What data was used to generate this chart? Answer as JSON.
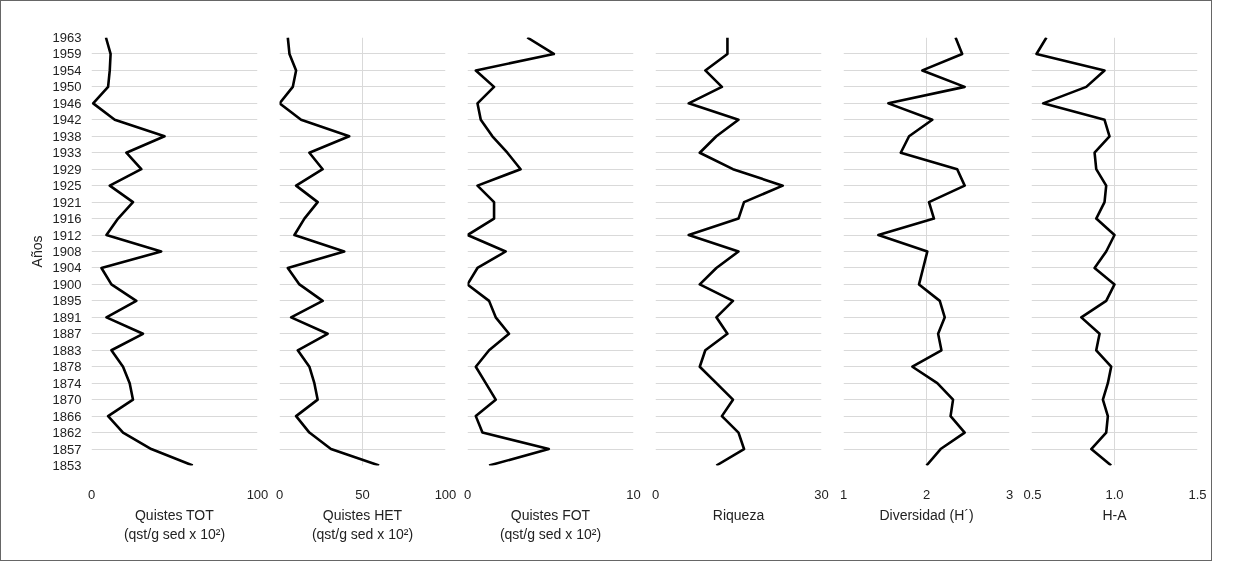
{
  "chart_data": [
    {
      "type": "line",
      "orientation": "horizontal",
      "ylabel": "Años",
      "xlabel": "Quistes TOT\n(qst/g sed x 10²)",
      "categories": [
        "1963",
        "1959",
        "1954",
        "1950",
        "1946",
        "1942",
        "1938",
        "1933",
        "1929",
        "1925",
        "1921",
        "1916",
        "1912",
        "1908",
        "1904",
        "1900",
        "1895",
        "1891",
        "1887",
        "1883",
        "1878",
        "1874",
        "1870",
        "1866",
        "1862",
        "1857",
        "1853"
      ],
      "series": [
        {
          "color": "#000000",
          "values": [
            8.7,
            11.5,
            11,
            10,
            1,
            14,
            44,
            21,
            30,
            11,
            25,
            16,
            9,
            42,
            6,
            12,
            27,
            9,
            31,
            12,
            19,
            23,
            25,
            10,
            19,
            36,
            61
          ]
        }
      ],
      "xlim": [
        0,
        100
      ],
      "xticks": [
        0,
        100
      ],
      "grid": true
    },
    {
      "type": "line",
      "orientation": "horizontal",
      "xlabel": "Quistes HET\n(qst/g sed x 10²)",
      "categories": [
        "1963",
        "1959",
        "1954",
        "1950",
        "1946",
        "1942",
        "1938",
        "1933",
        "1929",
        "1925",
        "1921",
        "1916",
        "1912",
        "1908",
        "1904",
        "1900",
        "1895",
        "1891",
        "1887",
        "1883",
        "1878",
        "1874",
        "1870",
        "1866",
        "1862",
        "1857",
        "1853"
      ],
      "series": [
        {
          "color": "#000000",
          "values": [
            5,
            6,
            10,
            8,
            0,
            13,
            42,
            18,
            26,
            10,
            23,
            15,
            9,
            39,
            5,
            12,
            26,
            7,
            29,
            11,
            18,
            21,
            23,
            10,
            18,
            31,
            60
          ]
        }
      ],
      "xlim": [
        0,
        100
      ],
      "xticks": [
        0,
        50,
        100
      ],
      "grid": true,
      "tick_labels": "x"
    },
    {
      "type": "line",
      "orientation": "horizontal",
      "xlabel": "Quistes FOT\n(qst/g sed x 10²)",
      "categories": [
        "1963",
        "1959",
        "1954",
        "1950",
        "1946",
        "1942",
        "1938",
        "1933",
        "1929",
        "1925",
        "1921",
        "1916",
        "1912",
        "1908",
        "1904",
        "1900",
        "1895",
        "1891",
        "1887",
        "1883",
        "1878",
        "1874",
        "1870",
        "1866",
        "1862",
        "1857",
        "1853"
      ],
      "series": [
        {
          "color": "#000000",
          "values": [
            3.6,
            5.2,
            0.5,
            1.6,
            0.6,
            0.8,
            1.5,
            2.4,
            3.2,
            0.6,
            1.6,
            1.6,
            0,
            2.3,
            0.6,
            0,
            1.3,
            1.7,
            2.5,
            1.3,
            0.5,
            1.1,
            1.7,
            0.5,
            0.9,
            4.9,
            1.3
          ]
        }
      ],
      "xlim": [
        0,
        10
      ],
      "xticks": [
        0,
        10
      ],
      "grid": true,
      "tick_labels": "x"
    },
    {
      "type": "line",
      "orientation": "horizontal",
      "xlabel": "Riqueza",
      "categories": [
        "1963",
        "1959",
        "1954",
        "1950",
        "1946",
        "1942",
        "1938",
        "1933",
        "1929",
        "1925",
        "1921",
        "1916",
        "1912",
        "1908",
        "1904",
        "1900",
        "1895",
        "1891",
        "1887",
        "1883",
        "1878",
        "1874",
        "1870",
        "1866",
        "1862",
        "1857",
        "1853"
      ],
      "series": [
        {
          "color": "#000000",
          "values": [
            13,
            13,
            9,
            12,
            6,
            15,
            11,
            8,
            14,
            23,
            16,
            15,
            6,
            15,
            11,
            8,
            14,
            11,
            13,
            9,
            8,
            11,
            14,
            12,
            15,
            16,
            11
          ]
        }
      ],
      "xlim": [
        0,
        30
      ],
      "xticks": [
        0,
        30
      ],
      "grid": true,
      "tick_labels": "x"
    },
    {
      "type": "line",
      "orientation": "horizontal",
      "xlabel": "Diversidad (H´)",
      "categories": [
        "1963",
        "1959",
        "1954",
        "1950",
        "1946",
        "1942",
        "1938",
        "1933",
        "1929",
        "1925",
        "1921",
        "1916",
        "1912",
        "1908",
        "1904",
        "1900",
        "1895",
        "1891",
        "1887",
        "1883",
        "1878",
        "1874",
        "1870",
        "1866",
        "1862",
        "1857",
        "1853"
      ],
      "series": [
        {
          "color": "#000000",
          "values": [
            2.35,
            2.43,
            1.95,
            2.46,
            1.54,
            2.07,
            1.79,
            1.69,
            2.37,
            2.46,
            2.03,
            2.09,
            1.42,
            2.01,
            1.96,
            1.91,
            2.16,
            2.22,
            2.14,
            2.18,
            1.83,
            2.13,
            2.32,
            2.29,
            2.46,
            2.17,
            2.0
          ]
        }
      ],
      "xlim": [
        1,
        3
      ],
      "xticks": [
        1,
        2,
        3
      ],
      "grid": true,
      "tick_labels": "x"
    },
    {
      "type": "line",
      "orientation": "horizontal",
      "xlabel": "H-A",
      "categories": [
        "1963",
        "1959",
        "1954",
        "1950",
        "1946",
        "1942",
        "1938",
        "1933",
        "1929",
        "1925",
        "1921",
        "1916",
        "1912",
        "1908",
        "1904",
        "1900",
        "1895",
        "1891",
        "1887",
        "1883",
        "1878",
        "1874",
        "1870",
        "1866",
        "1862",
        "1857",
        "1853"
      ],
      "series": [
        {
          "color": "#000000",
          "values": [
            0.59,
            0.53,
            0.94,
            0.83,
            0.57,
            0.94,
            0.97,
            0.88,
            0.89,
            0.95,
            0.94,
            0.89,
            1.0,
            0.95,
            0.88,
            1.0,
            0.95,
            0.8,
            0.91,
            0.89,
            0.98,
            0.96,
            0.93,
            0.96,
            0.95,
            0.86,
            0.98
          ]
        }
      ],
      "xlim": [
        0.5,
        1.5
      ],
      "xticks": [
        0.5,
        {
          "value": 1,
          "label": "1.0"
        },
        1.5
      ],
      "grid": true,
      "tick_labels": "x"
    }
  ]
}
